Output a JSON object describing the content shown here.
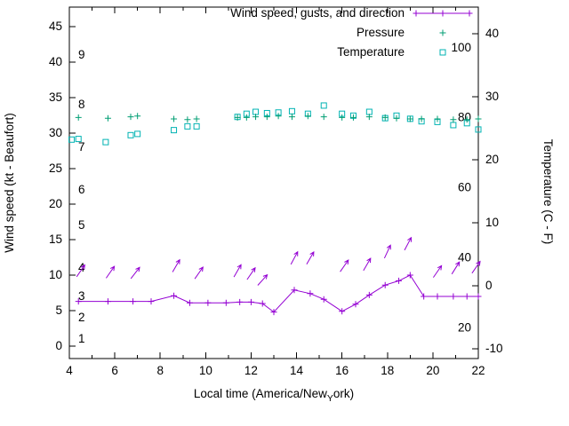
{
  "chart_data": {
    "type": "line",
    "title": "",
    "xlabel": "Local time (America/New_York)",
    "xlabel_parts": {
      "prefix": "Local time (America/New",
      "subscript": "Y",
      "suffix": "ork)"
    },
    "ylabel_left": "Wind speed (kt - Beaufort)",
    "ylabel_right": "Temperature (C - F)",
    "x_axis": {
      "min": 4,
      "max": 22,
      "ticks": [
        4,
        6,
        8,
        10,
        12,
        14,
        16,
        18,
        20,
        22
      ]
    },
    "y_left": {
      "unit": "kt",
      "ticks": [
        0,
        5,
        10,
        15,
        20,
        25,
        30,
        35,
        40,
        45
      ],
      "beaufort_labels": [
        [
          "1",
          1
        ],
        [
          "2",
          4
        ],
        [
          "3",
          7
        ],
        [
          "4",
          11
        ],
        [
          "5",
          17
        ],
        [
          "6",
          22
        ],
        [
          "7",
          28
        ],
        [
          "8",
          34
        ],
        [
          "9",
          41
        ]
      ]
    },
    "y_right": {
      "unit": "C",
      "ticks_c": [
        -10,
        0,
        10,
        20,
        30,
        40
      ],
      "fahrenheit_labels": [
        [
          "20",
          -6.67
        ],
        [
          "40",
          4.44
        ],
        [
          "60",
          15.56
        ],
        [
          "80",
          26.67
        ],
        [
          "100",
          37.78
        ]
      ]
    },
    "legend": [
      {
        "label": "Wind speed, gusts, and direction",
        "style": "line-plus",
        "color": "#9400d3"
      },
      {
        "label": "Pressure",
        "style": "plus",
        "color": "#009e73"
      },
      {
        "label": "Temperature",
        "style": "square",
        "color": "#00b3b3"
      }
    ],
    "colors": {
      "wind": "#9400d3",
      "pressure": "#009e73",
      "temperature": "#00b3b3",
      "axis": "#000000"
    },
    "series": {
      "wind_speed_kt": {
        "points": [
          [
            4.4,
            6.3
          ],
          [
            5.7,
            6.3
          ],
          [
            6.8,
            6.3
          ],
          [
            7.6,
            6.3
          ],
          [
            8.6,
            7.1
          ],
          [
            9.3,
            6.1
          ],
          [
            10.1,
            6.1
          ],
          [
            10.9,
            6.1
          ],
          [
            11.5,
            6.2
          ],
          [
            12.0,
            6.2
          ],
          [
            12.5,
            6.0
          ],
          [
            13.0,
            4.8
          ],
          [
            13.9,
            7.9
          ],
          [
            14.6,
            7.4
          ],
          [
            15.2,
            6.6
          ],
          [
            16.0,
            4.9
          ],
          [
            16.6,
            5.9
          ],
          [
            17.2,
            7.2
          ],
          [
            17.9,
            8.6
          ],
          [
            18.5,
            9.2
          ],
          [
            19.0,
            10.0
          ],
          [
            19.6,
            7.0
          ],
          [
            20.2,
            7.0
          ],
          [
            20.9,
            7.0
          ],
          [
            21.5,
            7.0
          ],
          [
            22.0,
            7.0
          ]
        ]
      },
      "wind_gust_direction_arrows": {
        "format": [
          "hour",
          "gust_kt",
          "direction_deg_from_north"
        ],
        "points": [
          [
            4.5,
            10.6,
            35
          ],
          [
            5.8,
            10.4,
            35
          ],
          [
            6.9,
            10.3,
            38
          ],
          [
            8.7,
            11.3,
            30
          ],
          [
            9.7,
            10.3,
            35
          ],
          [
            11.4,
            10.6,
            30
          ],
          [
            12.0,
            10.2,
            35
          ],
          [
            12.5,
            9.3,
            42
          ],
          [
            13.9,
            12.4,
            28
          ],
          [
            14.6,
            12.4,
            30
          ],
          [
            16.1,
            11.3,
            35
          ],
          [
            17.1,
            11.5,
            30
          ],
          [
            18.0,
            13.3,
            25
          ],
          [
            18.9,
            14.4,
            28
          ],
          [
            20.2,
            10.5,
            35
          ],
          [
            21.0,
            11.0,
            32
          ],
          [
            21.9,
            11.1,
            35
          ]
        ]
      },
      "pressure": {
        "points": [
          [
            4.4,
            32.2
          ],
          [
            5.7,
            32.1
          ],
          [
            6.7,
            32.3
          ],
          [
            7.0,
            32.4
          ],
          [
            8.6,
            32.0
          ],
          [
            9.2,
            31.9
          ],
          [
            9.6,
            32.0
          ],
          [
            11.4,
            32.2
          ],
          [
            11.8,
            32.2
          ],
          [
            12.2,
            32.3
          ],
          [
            12.7,
            32.3
          ],
          [
            13.2,
            32.4
          ],
          [
            13.8,
            32.3
          ],
          [
            14.5,
            32.4
          ],
          [
            15.2,
            32.3
          ],
          [
            16.0,
            32.2
          ],
          [
            16.5,
            32.2
          ],
          [
            17.2,
            32.3
          ],
          [
            17.9,
            32.2
          ],
          [
            18.4,
            32.1
          ],
          [
            19.0,
            32.0
          ],
          [
            19.5,
            32.0
          ],
          [
            20.2,
            32.0
          ],
          [
            20.9,
            31.9
          ],
          [
            21.5,
            31.9
          ],
          [
            22.0,
            32.0
          ]
        ]
      },
      "temperature_c": {
        "points": [
          [
            4.1,
            23.2
          ],
          [
            4.4,
            23.3
          ],
          [
            5.6,
            22.8
          ],
          [
            6.7,
            23.9
          ],
          [
            7.0,
            24.1
          ],
          [
            8.6,
            24.7
          ],
          [
            9.2,
            25.3
          ],
          [
            9.6,
            25.3
          ],
          [
            11.4,
            26.8
          ],
          [
            11.8,
            27.3
          ],
          [
            12.2,
            27.6
          ],
          [
            12.7,
            27.4
          ],
          [
            13.2,
            27.5
          ],
          [
            13.8,
            27.7
          ],
          [
            14.5,
            27.3
          ],
          [
            15.2,
            28.6
          ],
          [
            16.0,
            27.3
          ],
          [
            16.5,
            27.0
          ],
          [
            17.2,
            27.6
          ],
          [
            17.9,
            26.6
          ],
          [
            18.4,
            27.0
          ],
          [
            19.0,
            26.5
          ],
          [
            19.5,
            26.1
          ],
          [
            20.2,
            26.0
          ],
          [
            20.9,
            25.5
          ],
          [
            21.5,
            25.8
          ],
          [
            22.0,
            24.8
          ]
        ]
      }
    }
  }
}
